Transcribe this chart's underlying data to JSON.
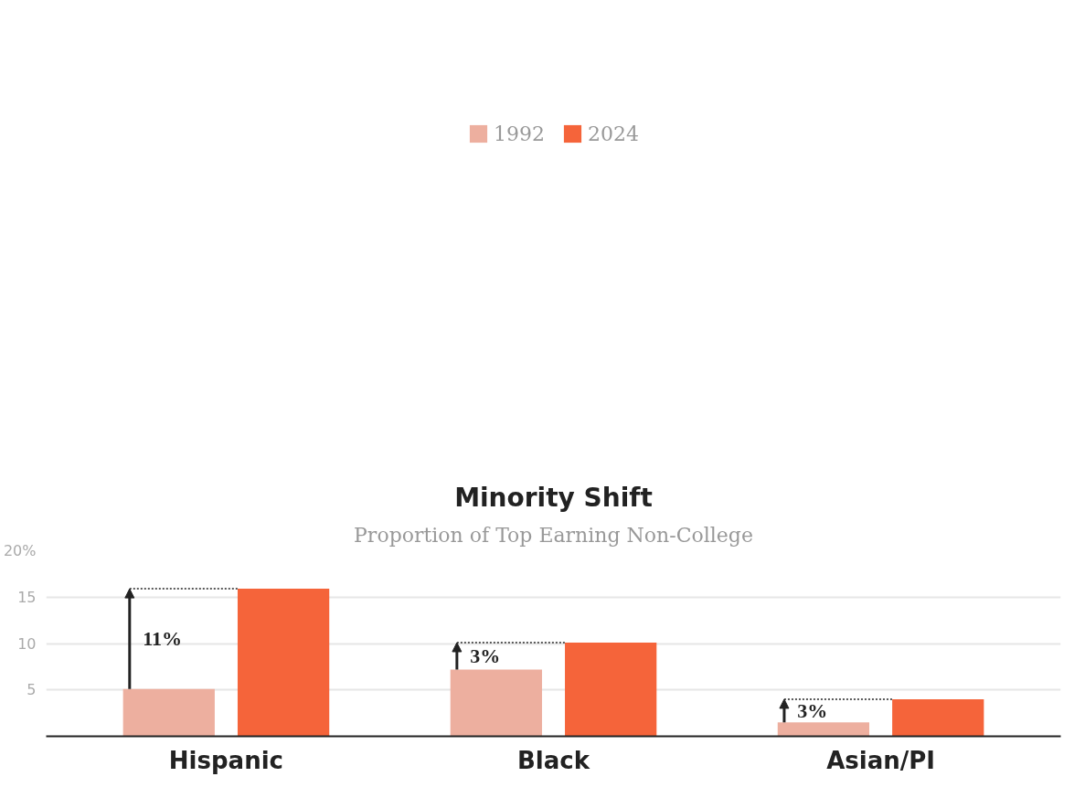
{
  "chart_data": {
    "type": "bar",
    "title": "Minority Shift",
    "subtitle": "Proportion of Top Earning Non-College",
    "categories": [
      "Hispanic",
      "Black",
      "Asian/PI"
    ],
    "series": [
      {
        "name": "1992",
        "color": "#edaf9f",
        "values": [
          5.1,
          7.2,
          1.5
        ]
      },
      {
        "name": "2024",
        "color": "#f5643a",
        "values": [
          15.9,
          10.1,
          4.0
        ]
      }
    ],
    "ylim": [
      0,
      20
    ],
    "yticks": [
      {
        "value": 0,
        "label": null
      },
      5,
      10,
      15,
      {
        "value": 20,
        "label": "20%"
      }
    ],
    "grid": "y",
    "legend": "top",
    "annotations": [
      "11%",
      "3%",
      "3%"
    ]
  }
}
